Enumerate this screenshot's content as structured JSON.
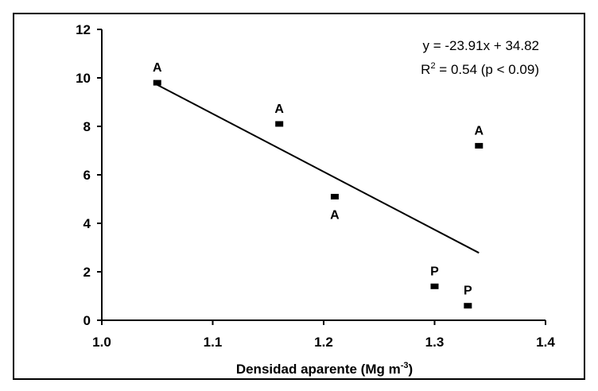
{
  "chart_data": {
    "type": "scatter",
    "title": "",
    "xlabel": {
      "main": "Densidad aparente (Mg m",
      "sup": "-3",
      "close": ")"
    },
    "ylabel": "",
    "xlim": [
      1.0,
      1.4
    ],
    "ylim": [
      0,
      12
    ],
    "xticks": [
      1.0,
      1.1,
      1.2,
      1.3,
      1.4
    ],
    "xtick_labels": [
      "1.0",
      "1.1",
      "1.2",
      "1.3",
      "1.4"
    ],
    "yticks": [
      0,
      2,
      4,
      6,
      8,
      10,
      12
    ],
    "ytick_labels": [
      "0",
      "2",
      "4",
      "6",
      "8",
      "10",
      "12"
    ],
    "grid": false,
    "points": [
      {
        "x": 1.05,
        "y": 9.8,
        "label": "A",
        "label_pos": "above"
      },
      {
        "x": 1.16,
        "y": 8.1,
        "label": "A",
        "label_pos": "above"
      },
      {
        "x": 1.21,
        "y": 5.1,
        "label": "A",
        "label_pos": "below"
      },
      {
        "x": 1.34,
        "y": 7.2,
        "label": "A",
        "label_pos": "above"
      },
      {
        "x": 1.3,
        "y": 1.4,
        "label": "P",
        "label_pos": "above"
      },
      {
        "x": 1.33,
        "y": 0.6,
        "label": "P",
        "label_pos": "above"
      }
    ],
    "trendline": {
      "slope": -23.91,
      "intercept": 34.82,
      "x_range": [
        1.05,
        1.34
      ]
    },
    "annotations": {
      "equation": "y = -23.91x + 34.82",
      "r2_prefix": "R",
      "r2_sup": "2",
      "r2_rest": " = 0.54 (p < 0.09)"
    }
  }
}
